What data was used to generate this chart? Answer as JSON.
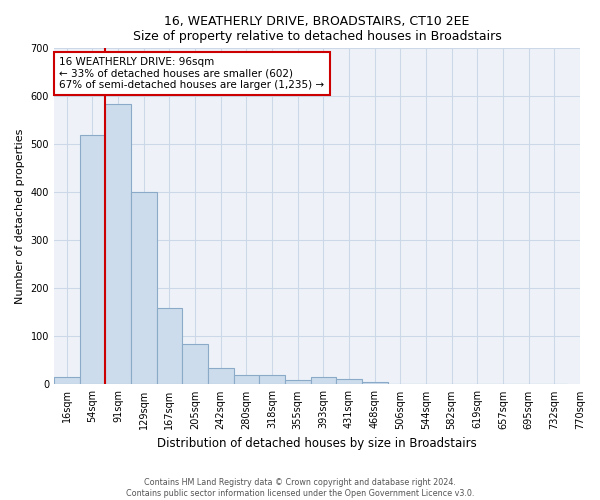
{
  "title": "16, WEATHERLY DRIVE, BROADSTAIRS, CT10 2EE",
  "subtitle": "Size of property relative to detached houses in Broadstairs",
  "xlabel": "Distribution of detached houses by size in Broadstairs",
  "ylabel": "Number of detached properties",
  "bin_labels": [
    "16sqm",
    "54sqm",
    "91sqm",
    "129sqm",
    "167sqm",
    "205sqm",
    "242sqm",
    "280sqm",
    "318sqm",
    "355sqm",
    "393sqm",
    "431sqm",
    "468sqm",
    "506sqm",
    "544sqm",
    "582sqm",
    "619sqm",
    "657sqm",
    "695sqm",
    "732sqm",
    "770sqm"
  ],
  "bar_values": [
    15,
    520,
    585,
    400,
    160,
    85,
    35,
    20,
    20,
    10,
    15,
    12,
    5,
    0,
    0,
    0,
    0,
    0,
    0,
    0
  ],
  "bar_color": "#ccdcec",
  "bar_edge_color": "#8aaac8",
  "vline_x": 1.5,
  "vline_color": "#cc0000",
  "annotation_line1": "16 WEATHERLY DRIVE: 96sqm",
  "annotation_line2": "← 33% of detached houses are smaller (602)",
  "annotation_line3": "67% of semi-detached houses are larger (1,235) →",
  "annotation_box_color": "#ffffff",
  "annotation_box_edge": "#cc0000",
  "grid_color": "#ccd8e8",
  "background_color": "#eef2f8",
  "footer1": "Contains HM Land Registry data © Crown copyright and database right 2024.",
  "footer2": "Contains public sector information licensed under the Open Government Licence v3.0.",
  "ylim": [
    0,
    700
  ],
  "yticks": [
    0,
    100,
    200,
    300,
    400,
    500,
    600,
    700
  ]
}
